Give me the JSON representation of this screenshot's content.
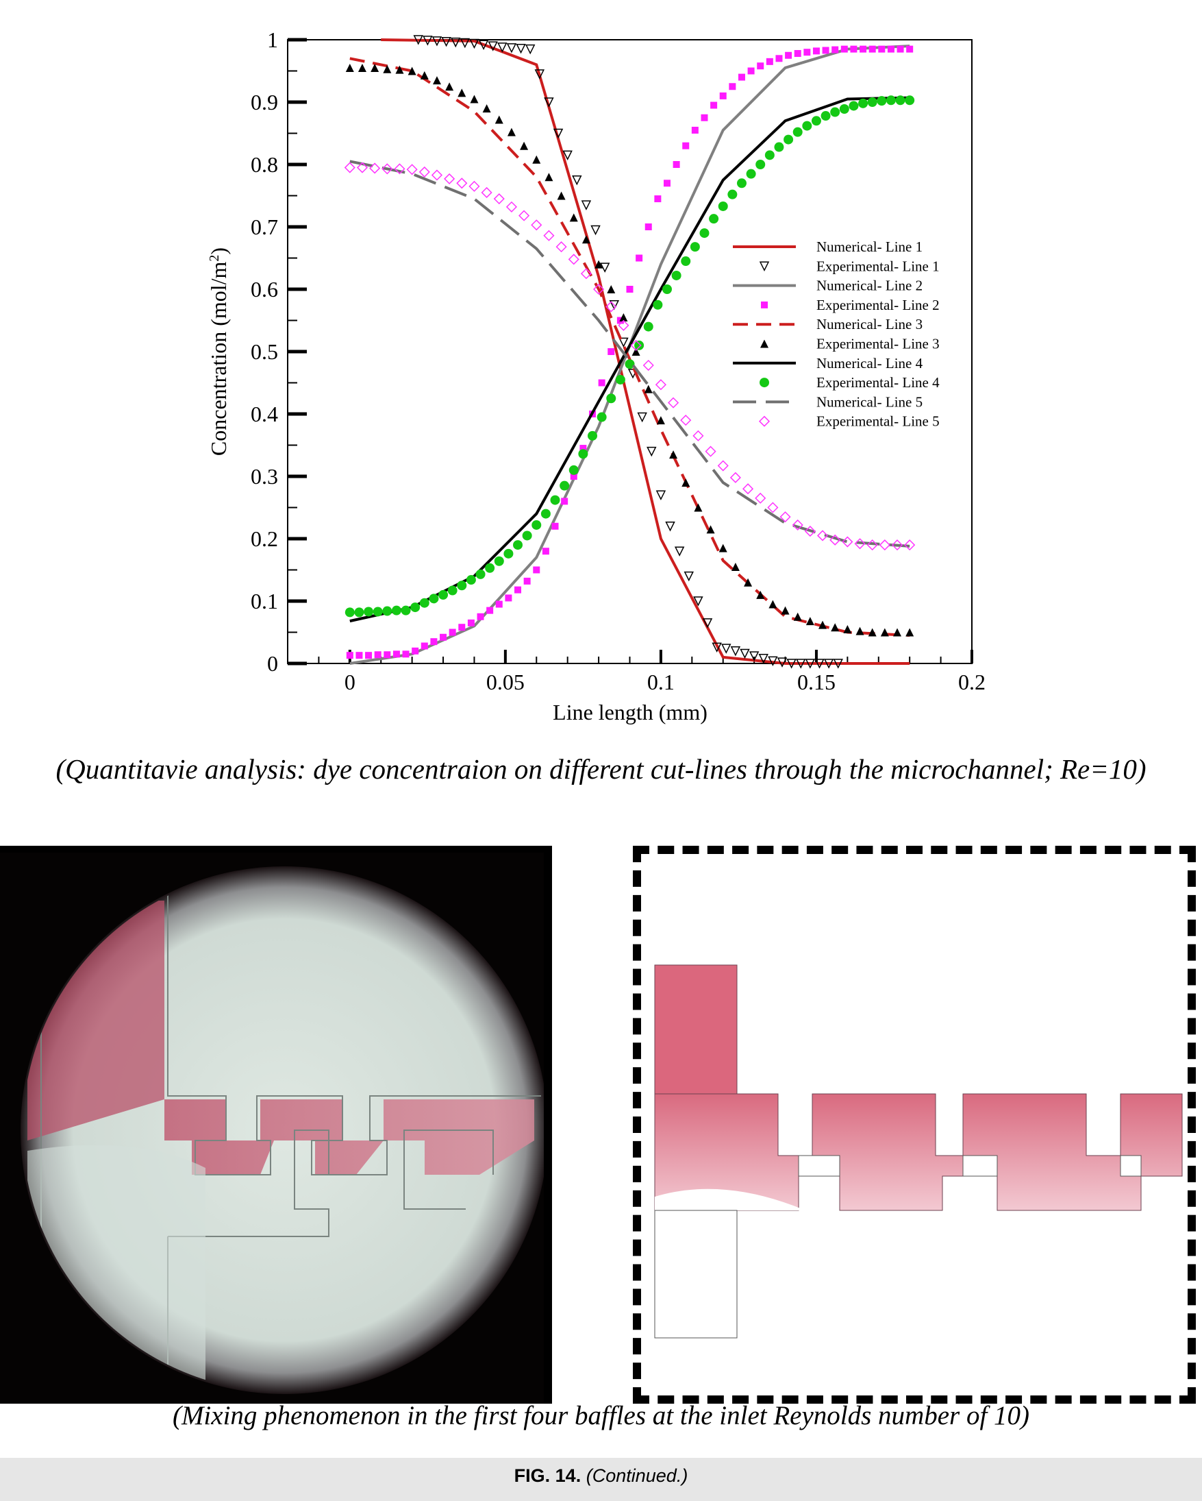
{
  "chart_data": {
    "type": "line",
    "xlabel": "Line length (mm)",
    "ylabel": "Concentration (mol/m2)",
    "xlim": [
      -0.02,
      0.2
    ],
    "ylim": [
      0,
      1
    ],
    "x_ticks": [
      "0",
      "0.05",
      "0.1",
      "0.15",
      "0.2"
    ],
    "y_ticks": [
      "0",
      "0.1",
      "0.2",
      "0.3",
      "0.4",
      "0.5",
      "0.6",
      "0.7",
      "0.8",
      "0.9",
      "1"
    ],
    "grid": false,
    "legend_position": "right",
    "series": [
      {
        "name": "Numerical- Line 1",
        "kind": "line",
        "color": "#cc1e1e",
        "dash": "solid",
        "x": [
          0.01,
          0.04,
          0.06,
          0.08,
          0.1,
          0.12,
          0.14,
          0.16,
          0.17,
          0.18
        ],
        "y": [
          1.0,
          0.998,
          0.96,
          0.62,
          0.2,
          0.01,
          0.0,
          0.0,
          0.0,
          0.0
        ]
      },
      {
        "name": "Experimental- Line 1",
        "kind": "marker",
        "marker": "triangle-down-open",
        "color": "#000000",
        "x": [
          0.022,
          0.025,
          0.028,
          0.031,
          0.034,
          0.037,
          0.04,
          0.043,
          0.046,
          0.049,
          0.052,
          0.055,
          0.058,
          0.061,
          0.064,
          0.067,
          0.07,
          0.073,
          0.076,
          0.079,
          0.082,
          0.085,
          0.088,
          0.091,
          0.094,
          0.097,
          0.1,
          0.103,
          0.106,
          0.109,
          0.112,
          0.115,
          0.118,
          0.121,
          0.124,
          0.127,
          0.13,
          0.133,
          0.136,
          0.139,
          0.142,
          0.145,
          0.148,
          0.151,
          0.154,
          0.157
        ],
        "y": [
          1.0,
          0.999,
          0.998,
          0.997,
          0.996,
          0.995,
          0.994,
          0.992,
          0.99,
          0.988,
          0.987,
          0.986,
          0.985,
          0.945,
          0.9,
          0.85,
          0.815,
          0.775,
          0.735,
          0.695,
          0.635,
          0.575,
          0.515,
          0.465,
          0.395,
          0.34,
          0.27,
          0.22,
          0.18,
          0.14,
          0.1,
          0.065,
          0.026,
          0.024,
          0.02,
          0.016,
          0.012,
          0.008,
          0.004,
          0.002,
          0.0,
          0.0,
          0.0,
          0.0,
          0.0,
          0.0
        ]
      },
      {
        "name": "Numerical- Line 2",
        "kind": "line",
        "color": "#808080",
        "dash": "solid",
        "x": [
          0.0,
          0.02,
          0.04,
          0.06,
          0.08,
          0.1,
          0.12,
          0.14,
          0.16,
          0.18
        ],
        "y": [
          0.0,
          0.015,
          0.06,
          0.17,
          0.38,
          0.64,
          0.855,
          0.955,
          0.985,
          0.99
        ]
      },
      {
        "name": "Experimental- Line 2",
        "kind": "marker",
        "marker": "square",
        "color": "#ff1aff",
        "x": [
          0.0,
          0.003,
          0.006,
          0.009,
          0.012,
          0.015,
          0.018,
          0.021,
          0.024,
          0.027,
          0.03,
          0.033,
          0.036,
          0.039,
          0.042,
          0.045,
          0.048,
          0.051,
          0.054,
          0.057,
          0.06,
          0.063,
          0.066,
          0.069,
          0.072,
          0.075,
          0.078,
          0.081,
          0.084,
          0.087,
          0.09,
          0.093,
          0.096,
          0.099,
          0.102,
          0.105,
          0.108,
          0.111,
          0.114,
          0.117,
          0.12,
          0.123,
          0.126,
          0.129,
          0.132,
          0.135,
          0.138,
          0.141,
          0.144,
          0.147,
          0.15,
          0.153,
          0.156,
          0.159,
          0.162,
          0.165,
          0.168,
          0.171,
          0.174,
          0.177,
          0.18
        ],
        "y": [
          0.013,
          0.013,
          0.013,
          0.014,
          0.014,
          0.015,
          0.015,
          0.02,
          0.028,
          0.035,
          0.042,
          0.05,
          0.058,
          0.065,
          0.075,
          0.085,
          0.095,
          0.105,
          0.118,
          0.132,
          0.15,
          0.18,
          0.22,
          0.26,
          0.3,
          0.345,
          0.4,
          0.45,
          0.5,
          0.55,
          0.6,
          0.65,
          0.7,
          0.745,
          0.77,
          0.8,
          0.83,
          0.855,
          0.875,
          0.895,
          0.91,
          0.925,
          0.94,
          0.95,
          0.958,
          0.965,
          0.97,
          0.975,
          0.978,
          0.98,
          0.982,
          0.983,
          0.984,
          0.985,
          0.985,
          0.985,
          0.985,
          0.985,
          0.985,
          0.985,
          0.985
        ]
      },
      {
        "name": "Numerical- Line 3",
        "kind": "line",
        "color": "#cc1e1e",
        "dash": "dashed",
        "x": [
          0.0,
          0.02,
          0.04,
          0.06,
          0.08,
          0.1,
          0.12,
          0.14,
          0.16,
          0.18
        ],
        "y": [
          0.97,
          0.95,
          0.885,
          0.78,
          0.6,
          0.375,
          0.165,
          0.075,
          0.05,
          0.045
        ]
      },
      {
        "name": "Experimental- Line 3",
        "kind": "marker",
        "marker": "triangle-up-filled",
        "color": "#000000",
        "x": [
          0.0,
          0.004,
          0.008,
          0.012,
          0.016,
          0.02,
          0.024,
          0.028,
          0.032,
          0.036,
          0.04,
          0.044,
          0.048,
          0.052,
          0.056,
          0.06,
          0.064,
          0.068,
          0.072,
          0.076,
          0.08,
          0.084,
          0.088,
          0.092,
          0.096,
          0.1,
          0.104,
          0.108,
          0.112,
          0.116,
          0.12,
          0.124,
          0.128,
          0.132,
          0.136,
          0.14,
          0.144,
          0.148,
          0.152,
          0.156,
          0.16,
          0.164,
          0.168,
          0.172,
          0.176,
          0.18
        ],
        "y": [
          0.955,
          0.955,
          0.955,
          0.953,
          0.952,
          0.95,
          0.943,
          0.935,
          0.925,
          0.915,
          0.905,
          0.89,
          0.872,
          0.852,
          0.83,
          0.808,
          0.78,
          0.75,
          0.715,
          0.68,
          0.64,
          0.6,
          0.555,
          0.5,
          0.44,
          0.39,
          0.335,
          0.29,
          0.25,
          0.215,
          0.185,
          0.155,
          0.13,
          0.11,
          0.095,
          0.085,
          0.075,
          0.068,
          0.062,
          0.058,
          0.055,
          0.052,
          0.05,
          0.05,
          0.05,
          0.05
        ]
      },
      {
        "name": "Numerical- Line 4",
        "kind": "line",
        "color": "#000000",
        "dash": "solid",
        "x": [
          0.0,
          0.02,
          0.04,
          0.06,
          0.08,
          0.1,
          0.12,
          0.14,
          0.16,
          0.18
        ],
        "y": [
          0.068,
          0.09,
          0.14,
          0.24,
          0.42,
          0.6,
          0.775,
          0.87,
          0.905,
          0.907
        ]
      },
      {
        "name": "Experimental- Line 4",
        "kind": "marker",
        "marker": "circle-filled",
        "color": "#14c814",
        "x": [
          0.0,
          0.003,
          0.006,
          0.009,
          0.012,
          0.015,
          0.018,
          0.021,
          0.024,
          0.027,
          0.03,
          0.033,
          0.036,
          0.039,
          0.042,
          0.045,
          0.048,
          0.051,
          0.054,
          0.057,
          0.06,
          0.063,
          0.066,
          0.069,
          0.072,
          0.075,
          0.078,
          0.081,
          0.084,
          0.087,
          0.09,
          0.093,
          0.096,
          0.099,
          0.102,
          0.105,
          0.108,
          0.111,
          0.114,
          0.117,
          0.12,
          0.123,
          0.126,
          0.129,
          0.132,
          0.135,
          0.138,
          0.141,
          0.144,
          0.147,
          0.15,
          0.153,
          0.156,
          0.159,
          0.162,
          0.165,
          0.168,
          0.171,
          0.174,
          0.177,
          0.18
        ],
        "y": [
          0.082,
          0.082,
          0.083,
          0.083,
          0.084,
          0.085,
          0.085,
          0.09,
          0.097,
          0.104,
          0.11,
          0.117,
          0.125,
          0.134,
          0.143,
          0.153,
          0.164,
          0.176,
          0.19,
          0.205,
          0.222,
          0.24,
          0.262,
          0.285,
          0.31,
          0.336,
          0.365,
          0.395,
          0.425,
          0.455,
          0.48,
          0.51,
          0.54,
          0.575,
          0.6,
          0.622,
          0.645,
          0.668,
          0.69,
          0.713,
          0.733,
          0.752,
          0.77,
          0.785,
          0.8,
          0.815,
          0.828,
          0.84,
          0.852,
          0.862,
          0.87,
          0.878,
          0.884,
          0.889,
          0.894,
          0.898,
          0.9,
          0.902,
          0.903,
          0.903,
          0.903
        ]
      },
      {
        "name": "Numerical- Line 5",
        "kind": "line",
        "color": "#707070",
        "dash": "long-dash",
        "x": [
          0.0,
          0.02,
          0.04,
          0.06,
          0.08,
          0.1,
          0.12,
          0.14,
          0.16,
          0.18
        ],
        "y": [
          0.805,
          0.785,
          0.745,
          0.665,
          0.55,
          0.42,
          0.29,
          0.225,
          0.195,
          0.188
        ]
      },
      {
        "name": "Experimental- Line 5",
        "kind": "marker",
        "marker": "diamond-open",
        "color": "#ff33ff",
        "x": [
          0.0,
          0.004,
          0.008,
          0.012,
          0.016,
          0.02,
          0.024,
          0.028,
          0.032,
          0.036,
          0.04,
          0.044,
          0.048,
          0.052,
          0.056,
          0.06,
          0.064,
          0.068,
          0.072,
          0.076,
          0.08,
          0.084,
          0.088,
          0.092,
          0.096,
          0.1,
          0.104,
          0.108,
          0.112,
          0.116,
          0.12,
          0.124,
          0.128,
          0.132,
          0.136,
          0.14,
          0.144,
          0.148,
          0.152,
          0.156,
          0.16,
          0.164,
          0.168,
          0.172,
          0.176,
          0.18
        ],
        "y": [
          0.795,
          0.795,
          0.794,
          0.793,
          0.793,
          0.792,
          0.788,
          0.783,
          0.777,
          0.77,
          0.765,
          0.755,
          0.745,
          0.732,
          0.718,
          0.703,
          0.686,
          0.668,
          0.648,
          0.625,
          0.6,
          0.572,
          0.542,
          0.51,
          0.478,
          0.447,
          0.418,
          0.39,
          0.365,
          0.34,
          0.317,
          0.298,
          0.28,
          0.265,
          0.25,
          0.235,
          0.222,
          0.212,
          0.205,
          0.198,
          0.195,
          0.192,
          0.19,
          0.19,
          0.19,
          0.19
        ]
      }
    ]
  },
  "captions": {
    "chart": "(Quantitavie analysis: dye concentraion on different cut-lines through the microchannel; Re=10)",
    "mixing": "(Mixing phenomenon in the first four baffles at the inlet Reynolds number of 10)"
  },
  "figure": {
    "label": "FIG. 14.",
    "note": "(Continued.)"
  }
}
